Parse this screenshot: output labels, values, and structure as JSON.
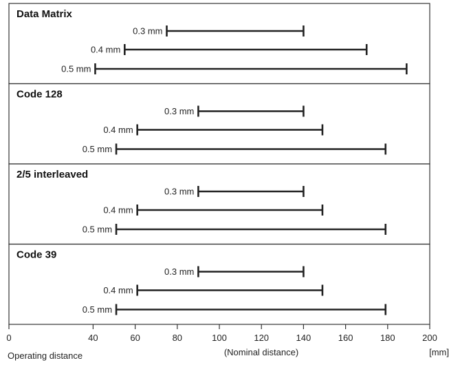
{
  "chart_data": {
    "type": "range-bar",
    "xlabel": "Operating distance",
    "xlabel_note": "(Nominal distance)",
    "unit": "[mm]",
    "xticks": [
      0,
      40,
      60,
      80,
      100,
      120,
      140,
      160,
      180,
      200
    ],
    "xlim": [
      0,
      200
    ],
    "sections": [
      {
        "title": "Data Matrix",
        "ranges": [
          {
            "label": "0.3 mm",
            "min": 75,
            "max": 140
          },
          {
            "label": "0.4 mm",
            "min": 55,
            "max": 170
          },
          {
            "label": "0.5 mm",
            "min": 41,
            "max": 189
          }
        ]
      },
      {
        "title": "Code 128",
        "ranges": [
          {
            "label": "0.3 mm",
            "min": 90,
            "max": 140
          },
          {
            "label": "0.4 mm",
            "min": 61,
            "max": 149
          },
          {
            "label": "0.5 mm",
            "min": 51,
            "max": 179
          }
        ]
      },
      {
        "title": "2/5 interleaved",
        "ranges": [
          {
            "label": "0.3 mm",
            "min": 90,
            "max": 140
          },
          {
            "label": "0.4 mm",
            "min": 61,
            "max": 149
          },
          {
            "label": "0.5 mm",
            "min": 51,
            "max": 179
          }
        ]
      },
      {
        "title": "Code 39",
        "ranges": [
          {
            "label": "0.3 mm",
            "min": 90,
            "max": 140
          },
          {
            "label": "0.4 mm",
            "min": 61,
            "max": 149
          },
          {
            "label": "0.5 mm",
            "min": 51,
            "max": 179
          }
        ]
      }
    ]
  }
}
